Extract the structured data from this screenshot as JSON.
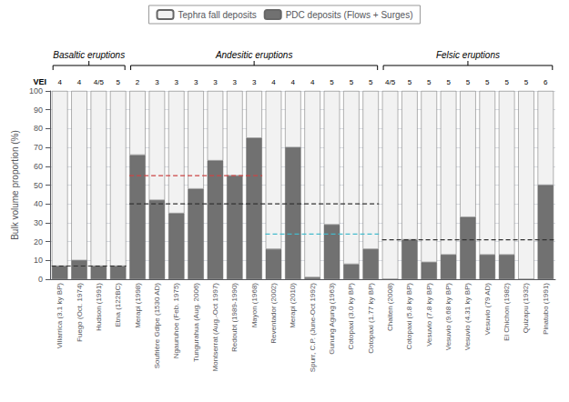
{
  "chart_data": {
    "type": "bar",
    "ylabel": "Bulk volume proportion (%)",
    "categories": [
      "Villarrica (3.1 ky BP)",
      "Fuego (Oct. 1974)",
      "Hudson (1991)",
      "Etna (122BC)",
      "Merapi (1998)",
      "Soufrière Gdlpe (1530 AD)",
      "Ngauruhoe (Feb. 1975)",
      "Tungurahua (Aug. 2006)",
      "Montserrat (Aug.-Oct 1997)",
      "Redoubt (1989-1990)",
      "Mayon (1968)",
      "Reventador (2002)",
      "Merapi (2010)",
      "Spurr, C.P. (June-Oct 1992)",
      "Gunung Agung (1963)",
      "Cotopaxi (3.0 ky BP)",
      "Cotopaxi (1.77 ky BP)",
      "Chaiten (2008)",
      "Cotopaxi (5.8 ky BP)",
      "Vesuvio (7.8 ky BP)",
      "Vesuvio (9.68 ky BP)",
      "Vesuvio (4.31 ky BP)",
      "Vesuvio (79 AD)",
      "El Chichon (1982)",
      "Quizapu (1932)",
      "Pinatubo (1991)"
    ],
    "series": [
      {
        "name": "PDC deposits (Flows + Surges)",
        "color": "#717171",
        "values": [
          7,
          10,
          7,
          7,
          66,
          42,
          35,
          48,
          63,
          55,
          75,
          16,
          70,
          1,
          29,
          8,
          16,
          0,
          21,
          9,
          13,
          33,
          13,
          13,
          0,
          50
        ]
      },
      {
        "name": "Tephra fall deposits",
        "color": "#f2f2f2",
        "values": [
          93,
          90,
          93,
          93,
          34,
          58,
          65,
          52,
          37,
          45,
          25,
          84,
          30,
          99,
          71,
          92,
          84,
          100,
          79,
          91,
          87,
          67,
          87,
          87,
          100,
          50
        ]
      }
    ],
    "stacked": true,
    "vei_label": "VEI",
    "vei": [
      "4",
      "4",
      "4/5",
      "5",
      "2",
      "3",
      "3",
      "3",
      "3",
      "3",
      "3",
      "4",
      "4",
      "4",
      "5",
      "5",
      "5",
      "4/5",
      "5",
      "5",
      "5",
      "5",
      "5",
      "5",
      "5",
      "6"
    ],
    "groups": [
      {
        "label": "Basaltic eruptions",
        "first": "Villarrica (3.1 ky BP)",
        "last": "Etna (122BC)"
      },
      {
        "label": "Andesitic eruptions",
        "first": "Merapi (1998)",
        "last": "Cotopaxi (1.77 ky BP)"
      },
      {
        "label": "Felsic eruptions",
        "first": "Chaiten (2008)",
        "last": "Pinatubo (1991)"
      }
    ],
    "hlines": [
      {
        "y": 7,
        "from": "Villarrica (3.1 ky BP)",
        "to": "Etna (122BC)",
        "color": "#333333",
        "line_style": "dashed"
      },
      {
        "y": 55,
        "from": "Merapi (1998)",
        "to": "Mayon (1968)",
        "color": "#cc4444",
        "line_style": "dashed"
      },
      {
        "y": 40,
        "from": "Merapi (1998)",
        "to": "Cotopaxi (1.77 ky BP)",
        "color": "#333333",
        "line_style": "dashed"
      },
      {
        "y": 24,
        "from": "Reventador (2002)",
        "to": "Cotopaxi (1.77 ky BP)",
        "color": "#44bbcc",
        "line_style": "dashed"
      },
      {
        "y": 21,
        "from": "Chaiten (2008)",
        "to": "Pinatubo (1991)",
        "color": "#333333",
        "line_style": "dashed"
      }
    ],
    "ylim": [
      0,
      100
    ],
    "yticks": [
      0,
      10,
      20,
      30,
      40,
      50,
      60,
      70,
      80,
      90,
      100
    ],
    "grid": true,
    "legend": "top"
  }
}
